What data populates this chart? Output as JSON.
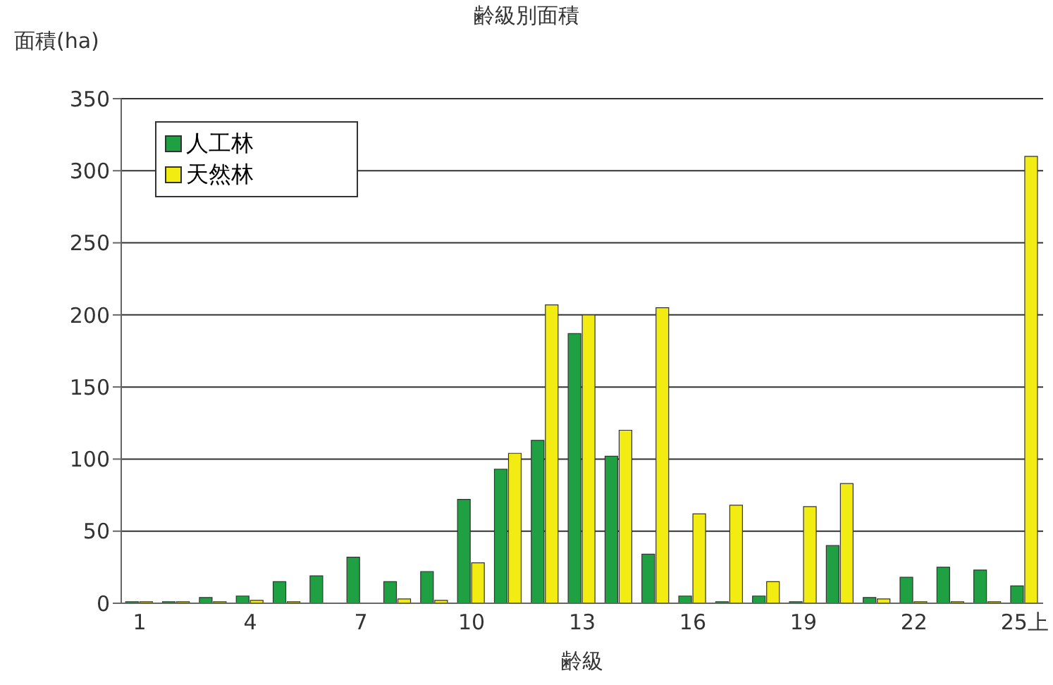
{
  "chart_data": {
    "type": "bar",
    "title": "齢級別面積",
    "xlabel": "齢級",
    "ylabel": "面積(ha)",
    "categories": [
      "1",
      null,
      null,
      "4",
      null,
      null,
      "7",
      null,
      null,
      "10",
      null,
      null,
      "13",
      null,
      null,
      "16",
      null,
      null,
      "19",
      null,
      null,
      "22",
      null,
      null,
      "25上"
    ],
    "series": [
      {
        "name": "人工林",
        "color": "#1fa043",
        "values": [
          1,
          1,
          4,
          5,
          15,
          19,
          32,
          15,
          22,
          72,
          93,
          113,
          187,
          102,
          34,
          5,
          1,
          5,
          1,
          40,
          4,
          18,
          25,
          23,
          12
        ]
      },
      {
        "name": "天然林",
        "color": "#f2ec12",
        "values": [
          1,
          1,
          1,
          2,
          1,
          0,
          0,
          3,
          2,
          28,
          104,
          207,
          200,
          120,
          205,
          62,
          68,
          15,
          67,
          83,
          3,
          1,
          1,
          1,
          310
        ]
      }
    ],
    "ylim": [
      0,
      350
    ],
    "yticks": [
      0,
      50,
      100,
      150,
      200,
      250,
      300,
      350
    ],
    "grid": "y",
    "legend": "top left"
  }
}
